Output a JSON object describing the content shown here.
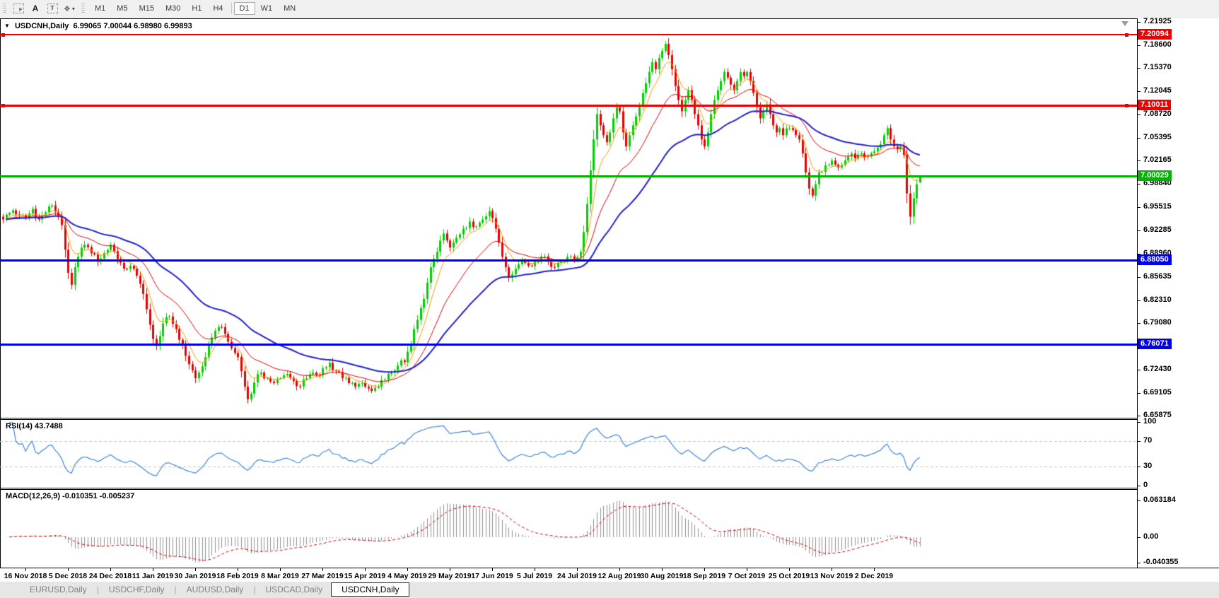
{
  "toolbar": {
    "letter_f": "F",
    "letter_a": "A",
    "letter_t": "T",
    "shapes_glyph": "❖",
    "caret": "▾",
    "timeframes": [
      "M1",
      "M5",
      "M15",
      "M30",
      "H1",
      "H4",
      "D1",
      "W1",
      "MN"
    ],
    "active_timeframe": "D1"
  },
  "chart_title": {
    "dropdown_glyph": "▼",
    "symbol_label": "USDCNH,Daily",
    "ohlc_text": "6.99065 7.00044 6.98980 6.99893"
  },
  "indicators": {
    "rsi_label": "RSI(14) 43.7488",
    "macd_label": "MACD(12,26,9) -0.010351 -0.005237"
  },
  "tabs": {
    "items": [
      "EURUSD,Daily",
      "USDCHF,Daily",
      "AUDUSD,Daily",
      "USDCAD,Daily",
      "USDCNH,Daily"
    ],
    "active": "USDCNH,Daily"
  },
  "chart_data": {
    "type": "candlestick",
    "symbol": "USDCNH",
    "timeframe": "Daily",
    "ohlc": {
      "open": 6.99065,
      "high": 7.00044,
      "low": 6.9898,
      "close": 6.99893
    },
    "price_axis_ticks": [
      7.21925,
      7.186,
      7.1537,
      7.12045,
      7.0872,
      7.05395,
      7.02165,
      6.9884,
      6.95515,
      6.92285,
      6.8896,
      6.85635,
      6.8231,
      6.7908,
      6.75755,
      6.7243,
      6.69105,
      6.65875
    ],
    "price_levels": [
      {
        "value": 7.20094,
        "label": "7.20094",
        "color": "#ee0000",
        "thickness": 2,
        "handles": true
      },
      {
        "value": 7.10011,
        "label": "7.10011",
        "color": "#ee0000",
        "thickness": 3,
        "handles": true
      },
      {
        "value": 7.00029,
        "label": "7.00029",
        "color": "#00b400",
        "thickness": 3,
        "handles": false
      },
      {
        "value": 6.8805,
        "label": "6.88050",
        "color": "#0000e0",
        "thickness": 3,
        "handles": false
      },
      {
        "value": 6.76071,
        "label": "6.76071",
        "color": "#0000e0",
        "thickness": 3,
        "handles": false
      }
    ],
    "x_axis_labels": [
      "16 Nov 2018",
      "5 Dec 2018",
      "24 Dec 2018",
      "11 Jan 2019",
      "30 Jan 2019",
      "18 Feb 2019",
      "8 Mar 2019",
      "27 Mar 2019",
      "15 Apr 2019",
      "4 May 2019",
      "29 May 2019",
      "17 Jun 2019",
      "5 Jul 2019",
      "24 Jul 2019",
      "12 Aug 2019",
      "30 Aug 2019",
      "18 Sep 2019",
      "7 Oct 2019",
      "25 Oct 2019",
      "13 Nov 2019",
      "2 Dec 2019"
    ],
    "rsi": {
      "period": 14,
      "current": 43.7488,
      "axis_values": [
        100,
        70,
        30,
        0
      ],
      "dashed_levels": [
        70,
        30
      ]
    },
    "macd": {
      "fast": 12,
      "slow": 26,
      "signal": 9,
      "current_macd": -0.010351,
      "current_signal": -0.005237,
      "axis_values": [
        0.063184,
        0.0,
        -0.040355
      ],
      "axis_labels": [
        "0.063184",
        "0.00",
        "-0.040355"
      ]
    },
    "colors": {
      "up_candle": "#00d000",
      "down_candle": "#e80000",
      "ma_fast": "#ff9900",
      "ma_mid": "#dd0000",
      "ma_slow": "#2222cc",
      "rsi_line": "#3f86d8",
      "rsi_dashed": "#c4c4c4",
      "macd_histogram": "#909090",
      "macd_signal": "#cc0000"
    },
    "moving_averages": [
      {
        "period": 7,
        "color": "#ff9900",
        "width": 1
      },
      {
        "period": 20,
        "color": "#dd0000",
        "width": 1
      },
      {
        "period": 45,
        "color": "#2222cc",
        "width": 2
      }
    ],
    "price_anchors": [
      [
        0,
        6.938
      ],
      [
        3,
        6.951
      ],
      [
        5,
        6.944
      ],
      [
        7,
        6.94
      ],
      [
        9,
        6.953
      ],
      [
        11,
        6.938
      ],
      [
        13,
        6.948
      ],
      [
        15,
        6.958
      ],
      [
        17,
        6.942
      ],
      [
        18,
        6.93
      ],
      [
        19,
        6.895
      ],
      [
        20,
        6.862
      ],
      [
        21,
        6.845
      ],
      [
        22,
        6.87
      ],
      [
        23,
        6.885
      ],
      [
        25,
        6.902
      ],
      [
        27,
        6.89
      ],
      [
        29,
        6.878
      ],
      [
        31,
        6.89
      ],
      [
        33,
        6.902
      ],
      [
        35,
        6.882
      ],
      [
        37,
        6.868
      ],
      [
        39,
        6.872
      ],
      [
        41,
        6.858
      ],
      [
        43,
        6.832
      ],
      [
        45,
        6.788
      ],
      [
        46,
        6.768
      ],
      [
        47,
        6.758
      ],
      [
        48,
        6.772
      ],
      [
        49,
        6.79
      ],
      [
        51,
        6.8
      ],
      [
        53,
        6.782
      ],
      [
        55,
        6.76
      ],
      [
        57,
        6.732
      ],
      [
        59,
        6.712
      ],
      [
        60,
        6.72
      ],
      [
        62,
        6.742
      ],
      [
        64,
        6.77
      ],
      [
        66,
        6.785
      ],
      [
        68,
        6.775
      ],
      [
        70,
        6.755
      ],
      [
        72,
        6.742
      ],
      [
        73,
        6.722
      ],
      [
        74,
        6.7
      ],
      [
        75,
        6.682
      ],
      [
        76,
        6.69
      ],
      [
        77,
        6.706
      ],
      [
        79,
        6.72
      ],
      [
        81,
        6.712
      ],
      [
        83,
        6.705
      ],
      [
        85,
        6.712
      ],
      [
        87,
        6.718
      ],
      [
        89,
        6.708
      ],
      [
        91,
        6.7
      ],
      [
        93,
        6.712
      ],
      [
        95,
        6.72
      ],
      [
        97,
        6.716
      ],
      [
        98,
        6.726
      ],
      [
        100,
        6.734
      ],
      [
        102,
        6.722
      ],
      [
        104,
        6.712
      ],
      [
        106,
        6.705
      ],
      [
        108,
        6.7
      ],
      [
        110,
        6.705
      ],
      [
        111,
        6.7
      ],
      [
        113,
        6.694
      ],
      [
        115,
        6.7
      ],
      [
        117,
        6.71
      ],
      [
        119,
        6.72
      ],
      [
        121,
        6.73
      ],
      [
        123,
        6.735
      ],
      [
        125,
        6.76
      ],
      [
        126,
        6.782
      ],
      [
        127,
        6.795
      ],
      [
        128,
        6.812
      ],
      [
        129,
        6.825
      ],
      [
        130,
        6.848
      ],
      [
        131,
        6.87
      ],
      [
        132,
        6.882
      ],
      [
        133,
        6.892
      ],
      [
        134,
        6.908
      ],
      [
        135,
        6.918
      ],
      [
        136,
        6.908
      ],
      [
        137,
        6.898
      ],
      [
        139,
        6.912
      ],
      [
        141,
        6.925
      ],
      [
        143,
        6.935
      ],
      [
        145,
        6.928
      ],
      [
        147,
        6.938
      ],
      [
        149,
        6.95
      ],
      [
        150,
        6.94
      ],
      [
        151,
        6.925
      ],
      [
        152,
        6.905
      ],
      [
        153,
        6.885
      ],
      [
        154,
        6.87
      ],
      [
        155,
        6.855
      ],
      [
        157,
        6.868
      ],
      [
        159,
        6.88
      ],
      [
        161,
        6.872
      ],
      [
        163,
        6.878
      ],
      [
        165,
        6.885
      ],
      [
        167,
        6.878
      ],
      [
        169,
        6.87
      ],
      [
        171,
        6.878
      ],
      [
        173,
        6.885
      ],
      [
        175,
        6.88
      ],
      [
        176,
        6.884
      ],
      [
        177,
        6.892
      ],
      [
        178,
        6.92
      ],
      [
        179,
        6.96
      ],
      [
        180,
        7.008
      ],
      [
        181,
        7.052
      ],
      [
        182,
        7.088
      ],
      [
        183,
        7.072
      ],
      [
        184,
        7.058
      ],
      [
        185,
        7.048
      ],
      [
        186,
        7.062
      ],
      [
        187,
        7.082
      ],
      [
        188,
        7.098
      ],
      [
        189,
        7.092
      ],
      [
        190,
        7.062
      ],
      [
        191,
        7.042
      ],
      [
        192,
        7.058
      ],
      [
        193,
        7.072
      ],
      [
        194,
        7.085
      ],
      [
        195,
        7.1
      ],
      [
        196,
        7.118
      ],
      [
        197,
        7.132
      ],
      [
        198,
        7.148
      ],
      [
        199,
        7.162
      ],
      [
        200,
        7.152
      ],
      [
        201,
        7.168
      ],
      [
        202,
        7.178
      ],
      [
        203,
        7.188
      ],
      [
        204,
        7.172
      ],
      [
        205,
        7.152
      ],
      [
        206,
        7.128
      ],
      [
        207,
        7.108
      ],
      [
        208,
        7.092
      ],
      [
        209,
        7.108
      ],
      [
        210,
        7.122
      ],
      [
        211,
        7.108
      ],
      [
        212,
        7.088
      ],
      [
        213,
        7.072
      ],
      [
        214,
        7.052
      ],
      [
        215,
        7.042
      ],
      [
        216,
        7.062
      ],
      [
        217,
        7.088
      ],
      [
        218,
        7.108
      ],
      [
        219,
        7.122
      ],
      [
        220,
        7.135
      ],
      [
        221,
        7.148
      ],
      [
        222,
        7.14
      ],
      [
        223,
        7.13
      ],
      [
        224,
        7.122
      ],
      [
        225,
        7.135
      ],
      [
        226,
        7.148
      ],
      [
        227,
        7.142
      ],
      [
        228,
        7.148
      ],
      [
        229,
        7.135
      ],
      [
        230,
        7.118
      ],
      [
        231,
        7.098
      ],
      [
        232,
        7.082
      ],
      [
        233,
        7.092
      ],
      [
        234,
        7.102
      ],
      [
        235,
        7.088
      ],
      [
        236,
        7.072
      ],
      [
        237,
        7.062
      ],
      [
        238,
        7.068
      ],
      [
        239,
        7.058
      ],
      [
        241,
        7.068
      ],
      [
        243,
        7.058
      ],
      [
        244,
        7.052
      ],
      [
        245,
        7.032
      ],
      [
        246,
        7.005
      ],
      [
        247,
        6.982
      ],
      [
        248,
        6.972
      ],
      [
        249,
        6.988
      ],
      [
        250,
        7.005
      ],
      [
        252,
        7.015
      ],
      [
        254,
        7.022
      ],
      [
        256,
        7.012
      ],
      [
        258,
        7.022
      ],
      [
        260,
        7.032
      ],
      [
        261,
        7.025
      ],
      [
        263,
        7.032
      ],
      [
        265,
        7.028
      ],
      [
        267,
        7.035
      ],
      [
        269,
        7.045
      ],
      [
        270,
        7.058
      ],
      [
        271,
        7.068
      ],
      [
        272,
        7.052
      ],
      [
        273,
        7.042
      ],
      [
        274,
        7.038
      ],
      [
        275,
        7.042
      ],
      [
        276,
        7.03
      ],
      [
        277,
        6.975
      ],
      [
        278,
        6.942
      ],
      [
        279,
        6.968
      ],
      [
        280,
        6.988
      ],
      [
        281,
        6.99893
      ]
    ]
  }
}
